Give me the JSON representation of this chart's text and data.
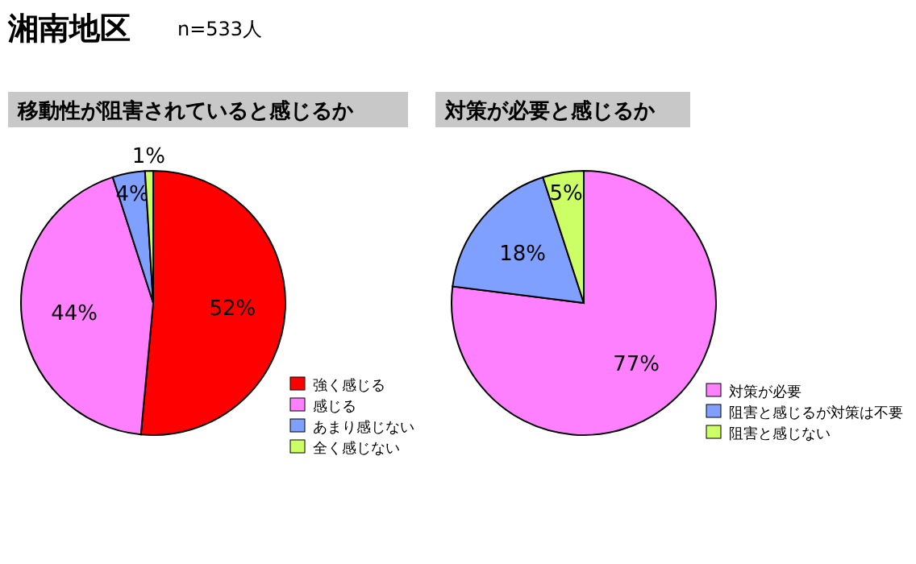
{
  "chart_data": [
    {
      "type": "pie",
      "title": "移動性が阻害されていると感じるか",
      "annotations": [
        "湘南地区",
        "n=533人"
      ],
      "categories": [
        "強く感じる",
        "感じる",
        "あまり感じない",
        "全く感じない"
      ],
      "values": [
        52,
        44,
        4,
        1
      ],
      "colors": [
        "#ff0000",
        "#ff80ff",
        "#80a0ff",
        "#ccff66"
      ],
      "value_labels": [
        "52%",
        "44%",
        "4%",
        "1%"
      ],
      "legend": "bottom right"
    },
    {
      "type": "pie",
      "title": "対策が必要と感じるか",
      "categories": [
        "対策が必要",
        "阻害と感じるが対策は不要",
        "阻害と感じない"
      ],
      "values": [
        77,
        18,
        5
      ],
      "colors": [
        "#ff80ff",
        "#80a0ff",
        "#ccff66"
      ],
      "value_labels": [
        "77%",
        "18%",
        "5%"
      ],
      "legend": "bottom right"
    }
  ]
}
